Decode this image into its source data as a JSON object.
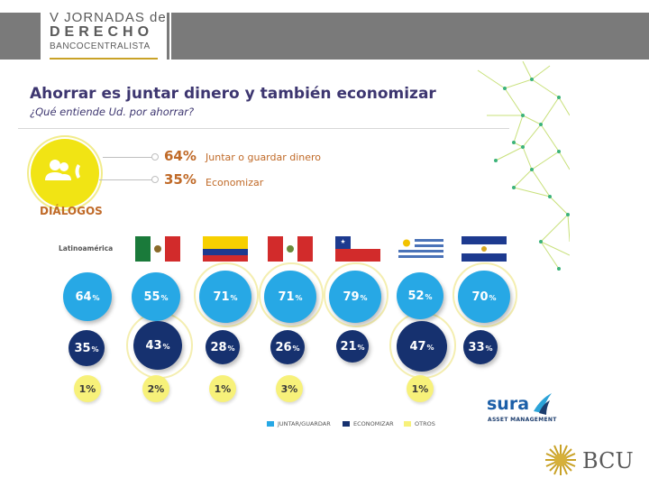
{
  "header": {
    "line1": "V JORNADAS de",
    "line2": "DERECHO",
    "line3": "BANCOCENTRALISTA"
  },
  "slide": {
    "title": "Ahorrar es juntar dinero y también economizar",
    "subtitle": "¿Qué entiende Ud. por ahorrar?",
    "source_label": "DIÁLOGOS",
    "icon": "people-phone-icon",
    "summary": [
      {
        "pct": "64%",
        "desc": "Juntar o guardar dinero"
      },
      {
        "pct": "35%",
        "desc": "Economizar"
      }
    ],
    "region_label": "Latinoamérica"
  },
  "chart_data": {
    "type": "table",
    "columns": [
      "Latinoamérica",
      "México",
      "Colombia",
      "Perú",
      "Chile",
      "Uruguay",
      "El Salvador"
    ],
    "series": [
      {
        "name": "JUNTAR/GUARDAR",
        "values": [
          64,
          55,
          71,
          71,
          79,
          52,
          70
        ],
        "color": "#27a8e5"
      },
      {
        "name": "ECONOMIZAR",
        "values": [
          35,
          43,
          28,
          26,
          21,
          47,
          33
        ],
        "color": "#16316f"
      },
      {
        "name": "OTROS",
        "values": [
          1,
          2,
          1,
          3,
          null,
          1,
          null
        ],
        "color": "#f7f17a"
      }
    ],
    "highlighted": {
      "JUNTAR/GUARDAR": [
        2,
        3,
        4,
        6
      ],
      "ECONOMIZAR": [
        1,
        5
      ]
    }
  },
  "bubbles": {
    "top": [
      "64",
      "55",
      "71",
      "71",
      "79",
      "52",
      "70"
    ],
    "mid": [
      "35",
      "43",
      "28",
      "26",
      "21",
      "47",
      "33"
    ],
    "bot": [
      "1%",
      "2%",
      "1%",
      "3%",
      "1%"
    ],
    "pct_symbol": "%"
  },
  "legend": [
    "JUNTAR/GUARDAR",
    "ECONOMIZAR",
    "OTROS"
  ],
  "brand": {
    "sura": "sura",
    "sura_sub": "ASSET MANAGEMENT",
    "bcu": "BCU"
  },
  "colors": {
    "accent_orange": "#c06a28",
    "title_purple": "#3d3670",
    "blue": "#27a8e5",
    "navy": "#16316f",
    "yellow": "#f1e414"
  }
}
